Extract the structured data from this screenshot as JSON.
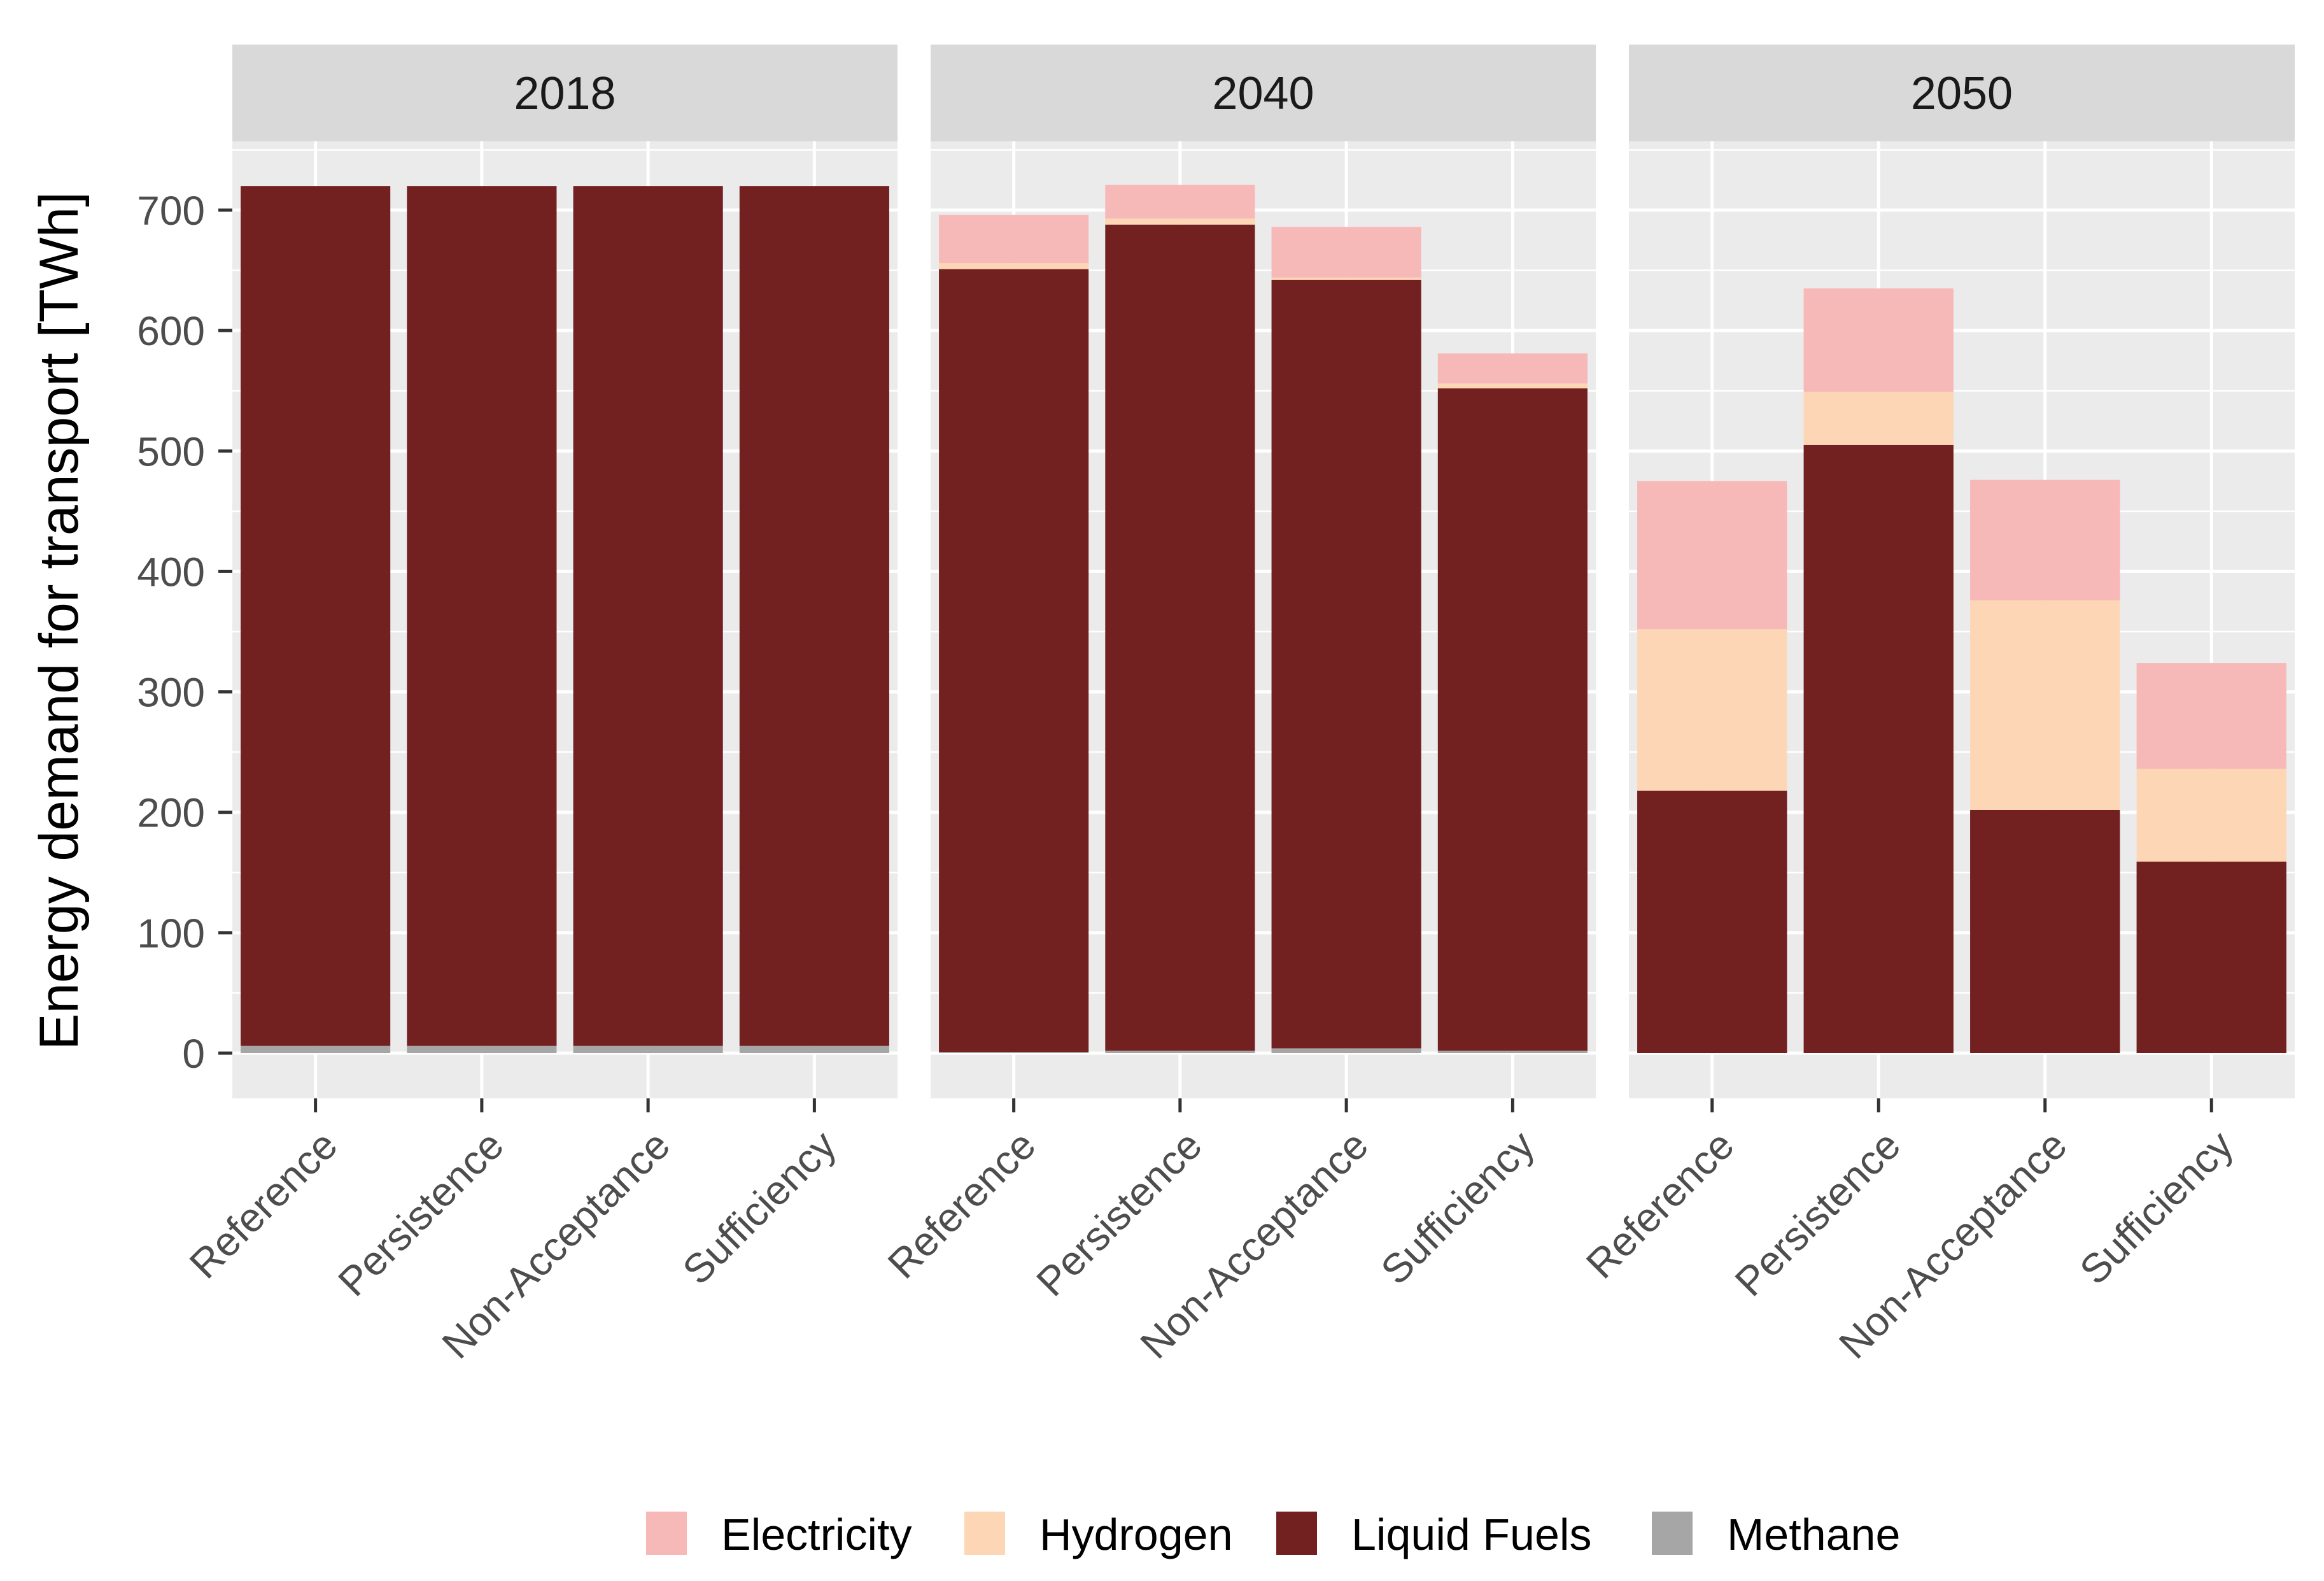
{
  "chart_data": {
    "type": "bar",
    "stacked": true,
    "ylabel": "Energy demand for transport [TWh]",
    "xlabel": "",
    "ylim": [
      0,
      750
    ],
    "yticks": [
      0,
      100,
      200,
      300,
      400,
      500,
      600,
      700
    ],
    "categories": [
      "Reference",
      "Persistence",
      "Non-Acceptance",
      "Sufficiency"
    ],
    "legend_position": "bottom",
    "colors": {
      "Electricity": "#f7b8b8",
      "Hydrogen": "#fdd6b5",
      "Liquid Fuels": "#722020",
      "Methane": "#a6a6a6"
    },
    "legend": [
      "Electricity",
      "Hydrogen",
      "Liquid Fuels",
      "Methane"
    ],
    "panels": [
      {
        "title": "2018",
        "series": [
          {
            "name": "Methane",
            "values": [
              6,
              6,
              6,
              6
            ]
          },
          {
            "name": "Liquid Fuels",
            "values": [
              714,
              714,
              714,
              714
            ]
          },
          {
            "name": "Hydrogen",
            "values": [
              0,
              0,
              0,
              0
            ]
          },
          {
            "name": "Electricity",
            "values": [
              0,
              0,
              0,
              0
            ]
          }
        ]
      },
      {
        "title": "2040",
        "series": [
          {
            "name": "Methane",
            "values": [
              1,
              2,
              4,
              2
            ]
          },
          {
            "name": "Liquid Fuels",
            "values": [
              650,
              686,
              638,
              550
            ]
          },
          {
            "name": "Hydrogen",
            "values": [
              5,
              5,
              2,
              4
            ]
          },
          {
            "name": "Electricity",
            "values": [
              40,
              28,
              42,
              25
            ]
          }
        ]
      },
      {
        "title": "2050",
        "series": [
          {
            "name": "Methane",
            "values": [
              0,
              0,
              0,
              0
            ]
          },
          {
            "name": "Liquid Fuels",
            "values": [
              218,
              505,
              202,
              159
            ]
          },
          {
            "name": "Hydrogen",
            "values": [
              134,
              44,
              174,
              77
            ]
          },
          {
            "name": "Electricity",
            "values": [
              123,
              86,
              100,
              88
            ]
          }
        ]
      }
    ]
  }
}
